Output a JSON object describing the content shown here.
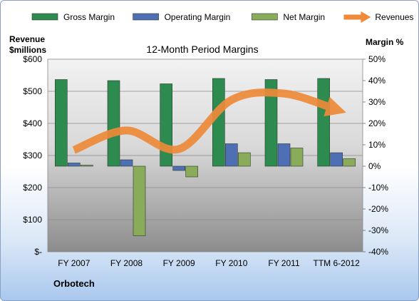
{
  "chart_data": {
    "type": "bar",
    "title": "12-Month Period Margins",
    "company": "Orbotech",
    "categories": [
      "FY 2007",
      "FY 2008",
      "FY 2009",
      "FY 2010",
      "FY 2011",
      "TTM 6-2012"
    ],
    "left_axis": {
      "label_line1": "Revenue",
      "label_line2": "$millions",
      "range": [
        0,
        600
      ],
      "ticks": [
        0,
        100,
        200,
        300,
        400,
        500,
        600
      ],
      "tick_labels": [
        "$-",
        "$100",
        "$200",
        "$300",
        "$400",
        "$500",
        "$600"
      ]
    },
    "right_axis": {
      "label": "Margin %",
      "range": [
        -40,
        50
      ],
      "ticks": [
        -40,
        -30,
        -20,
        -10,
        0,
        10,
        20,
        30,
        40,
        50
      ],
      "tick_labels": [
        "-40%",
        "-30%",
        "-20%",
        "-10%",
        "0%",
        "10%",
        "20%",
        "30%",
        "40%",
        "50%"
      ]
    },
    "series": [
      {
        "name": "Gross Margin",
        "axis": "right",
        "color": "#2e8b4f",
        "values": [
          40.5,
          40,
          38.5,
          41,
          40.5,
          41
        ]
      },
      {
        "name": "Operating Margin",
        "axis": "right",
        "color": "#4f6fb5",
        "values": [
          1.5,
          3,
          -2,
          10.5,
          10.5,
          6.3
        ]
      },
      {
        "name": "Net Margin",
        "axis": "right",
        "color": "#8aab5a",
        "values": [
          0.5,
          -32.5,
          -5,
          6.3,
          8.5,
          3.5
        ]
      },
      {
        "name": "Revenues",
        "axis": "left",
        "color": "#ee8a3a",
        "values": [
          317,
          378,
          320,
          473,
          493,
          443
        ]
      }
    ],
    "grid": true,
    "legend_position": "top"
  }
}
